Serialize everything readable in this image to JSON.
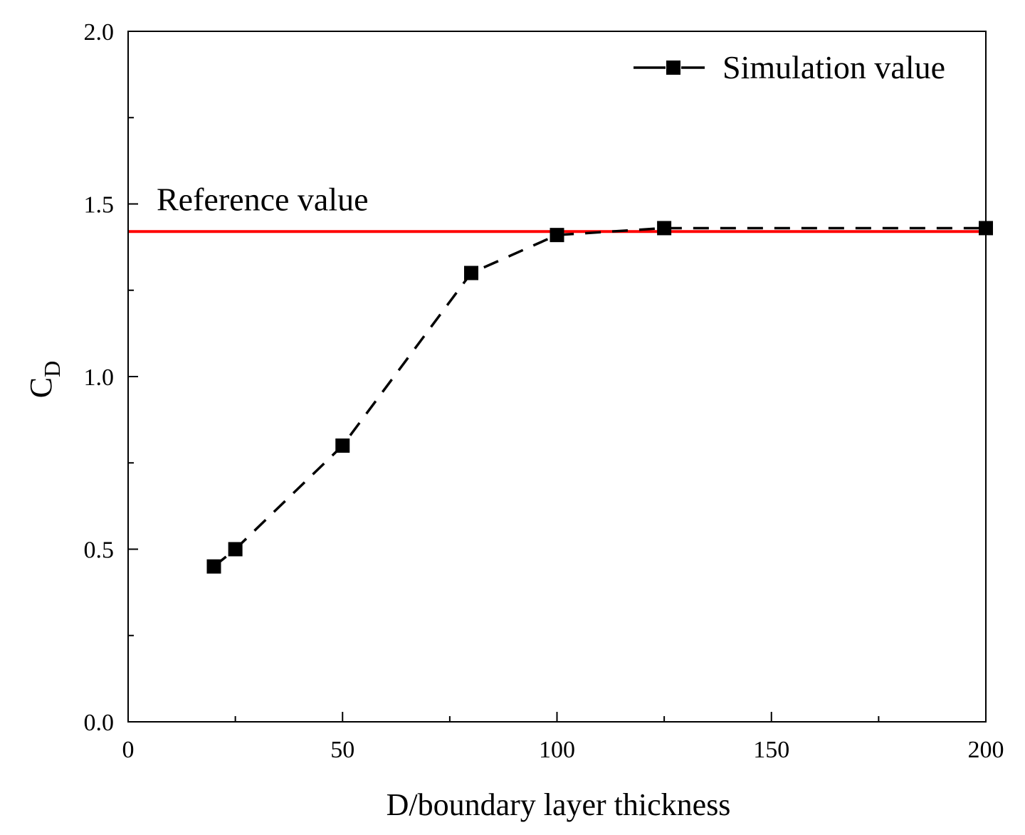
{
  "chart_data": {
    "type": "line",
    "title": "",
    "xlabel": "D/boundary layer thickness",
    "ylabel_main": "C",
    "ylabel_sub": "D",
    "xlim": [
      0,
      200
    ],
    "ylim": [
      0.0,
      2.0
    ],
    "xticks_major": [
      0,
      50,
      100,
      150,
      200
    ],
    "xticks_minor": [
      25,
      75,
      125,
      175
    ],
    "xtick_labels": [
      "0",
      "50",
      "100",
      "150",
      "200"
    ],
    "yticks_major": [
      0.0,
      0.5,
      1.0,
      1.5,
      2.0
    ],
    "yticks_minor": [
      0.25,
      0.75,
      1.25,
      1.75
    ],
    "ytick_labels": [
      "0.0",
      "0.5",
      "1.0",
      "1.5",
      "2.0"
    ],
    "grid": false,
    "legend_position": "top-right",
    "series": [
      {
        "name": "Simulation value",
        "style": "dashed",
        "marker": "square",
        "color": "#000000",
        "x": [
          20,
          25,
          50,
          80,
          100,
          125,
          200
        ],
        "y": [
          0.45,
          0.5,
          0.8,
          1.3,
          1.41,
          1.43,
          1.43
        ]
      }
    ],
    "reference": {
      "label": "Reference value",
      "value": 1.42,
      "color": "#ff0000"
    }
  }
}
